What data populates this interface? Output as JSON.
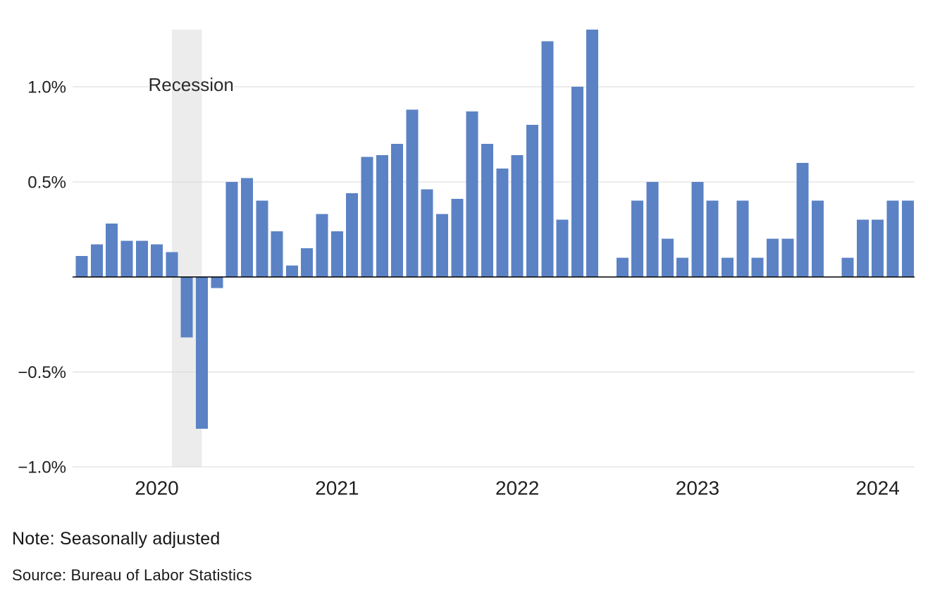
{
  "chart_data": {
    "type": "bar",
    "title": "",
    "unit": "percent, monthly change",
    "months": [
      "2019-08",
      "2019-09",
      "2019-10",
      "2019-11",
      "2019-12",
      "2020-01",
      "2020-02",
      "2020-03",
      "2020-04",
      "2020-05",
      "2020-06",
      "2020-07",
      "2020-08",
      "2020-09",
      "2020-10",
      "2020-11",
      "2020-12",
      "2021-01",
      "2021-02",
      "2021-03",
      "2021-04",
      "2021-05",
      "2021-06",
      "2021-07",
      "2021-08",
      "2021-09",
      "2021-10",
      "2021-11",
      "2021-12",
      "2022-01",
      "2022-02",
      "2022-03",
      "2022-04",
      "2022-05",
      "2022-06",
      "2022-07",
      "2022-08",
      "2022-09",
      "2022-10",
      "2022-11",
      "2022-12",
      "2023-01",
      "2023-02",
      "2023-03",
      "2023-04",
      "2023-05",
      "2023-06",
      "2023-07",
      "2023-08",
      "2023-09",
      "2023-10",
      "2023-11",
      "2023-12",
      "2024-01",
      "2024-02",
      "2024-03"
    ],
    "values": [
      0.11,
      0.17,
      0.28,
      0.19,
      0.19,
      0.17,
      0.13,
      -0.32,
      -0.8,
      -0.06,
      0.5,
      0.52,
      0.4,
      0.24,
      0.06,
      0.15,
      0.33,
      0.24,
      0.44,
      0.63,
      0.64,
      0.7,
      0.88,
      0.46,
      0.33,
      0.41,
      0.87,
      0.7,
      0.57,
      0.64,
      0.8,
      1.24,
      0.3,
      1.0,
      1.3,
      0.0,
      0.1,
      0.4,
      0.5,
      0.2,
      0.1,
      0.5,
      0.4,
      0.1,
      0.4,
      0.1,
      0.2,
      0.2,
      0.6,
      0.4,
      0.0,
      0.1,
      0.3,
      0.3,
      0.4,
      0.4
    ],
    "y_ticks": [
      {
        "label": "1.0%",
        "value": 1.0
      },
      {
        "label": "0.5%",
        "value": 0.5
      },
      {
        "label": "−0.5%",
        "value": -0.5
      },
      {
        "label": "−1.0%",
        "value": -1.0
      }
    ],
    "year_ticks": [
      {
        "label": "2020",
        "month": "2020-01"
      },
      {
        "label": "2021",
        "month": "2021-01"
      },
      {
        "label": "2022",
        "month": "2022-01"
      },
      {
        "label": "2023",
        "month": "2023-01"
      },
      {
        "label": "2024",
        "month": "2024-01"
      }
    ],
    "recession_band": {
      "label": "Recession",
      "from_month": "2020-02",
      "to_month": "2020-04"
    },
    "ylim": [
      -1.05,
      1.32
    ],
    "grid": true,
    "legend": "none",
    "colors": {
      "bar": "#5b82c4",
      "band": "#ececec",
      "gridline": "#d8d8d8",
      "zero_line": "#000000",
      "axis_text": "#1f1f1f",
      "annotation_text": "#2b2b2b"
    }
  },
  "footer": {
    "note": "Note: Seasonally adjusted",
    "source": "Source: Bureau of Labor Statistics"
  }
}
